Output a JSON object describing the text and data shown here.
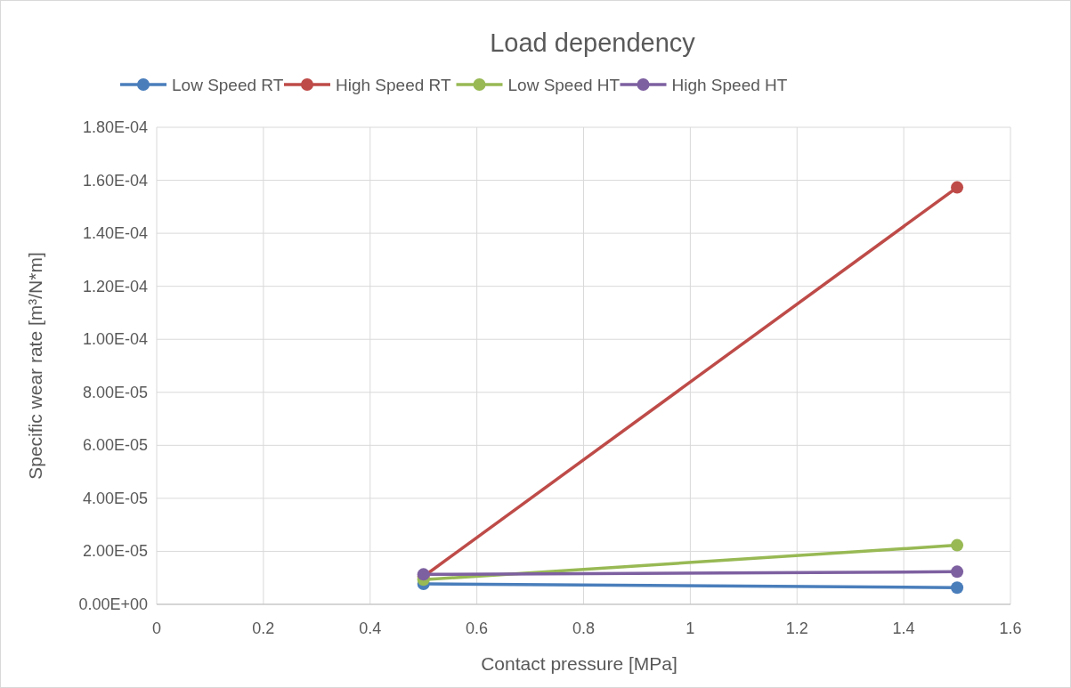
{
  "chart_data": {
    "type": "line",
    "title": "Load dependency",
    "xlabel": "Contact pressure [MPa]",
    "ylabel": "Specific wear rate [m³/N*m]",
    "x": [
      0.5,
      1.5
    ],
    "series": [
      {
        "name": "Low Speed RT",
        "color": "#4a7ebb",
        "values": [
          7.7e-06,
          6.3e-06
        ]
      },
      {
        "name": "High Speed RT",
        "color": "#be4b48",
        "values": [
          1.05e-05,
          0.0001573
        ]
      },
      {
        "name": "Low Speed HT",
        "color": "#98b954",
        "values": [
          9.3e-06,
          2.23e-05
        ]
      },
      {
        "name": "High Speed HT",
        "color": "#7d60a0",
        "values": [
          1.13e-05,
          1.23e-05
        ]
      }
    ],
    "xlim": [
      0,
      1.6
    ],
    "xticks": [
      0,
      0.2,
      0.4,
      0.6,
      0.8,
      1,
      1.2,
      1.4,
      1.6
    ],
    "ylim": [
      0,
      0.00018
    ],
    "yticks": [
      {
        "value": 0,
        "label": "0.00E+00"
      },
      {
        "value": 2e-05,
        "label": "2.00E-05"
      },
      {
        "value": 4e-05,
        "label": "4.00E-05"
      },
      {
        "value": 6e-05,
        "label": "6.00E-05"
      },
      {
        "value": 8e-05,
        "label": "8.00E-05"
      },
      {
        "value": 0.0001,
        "label": "1.00E-04"
      },
      {
        "value": 0.00012,
        "label": "1.20E-04"
      },
      {
        "value": 0.00014,
        "label": "1.40E-04"
      },
      {
        "value": 0.00016,
        "label": "1.60E-04"
      },
      {
        "value": 0.00018,
        "label": "1.80E-04"
      }
    ],
    "grid": true,
    "legend": "top",
    "marker": "circle",
    "line_style": "solid"
  }
}
